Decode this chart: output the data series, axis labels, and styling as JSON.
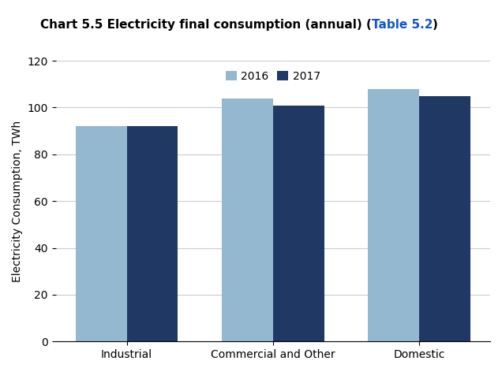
{
  "title_plain": "Chart 5.5 Electricity final consumption (annual) (",
  "title_link": "Table 5.2",
  "title_end": ")",
  "categories": [
    "Industrial",
    "Commercial and Other",
    "Domestic"
  ],
  "values_2016": [
    92,
    104,
    108
  ],
  "values_2017": [
    92,
    101,
    105
  ],
  "color_2016": "#95b8d1",
  "color_2017": "#1f3864",
  "ylabel": "Electricity Consumption, TWh",
  "ylim": [
    0,
    120
  ],
  "yticks": [
    0,
    20,
    40,
    60,
    80,
    100,
    120
  ],
  "legend_labels": [
    "2016",
    "2017"
  ],
  "bar_width": 0.35,
  "background_color": "#ffffff",
  "grid_color": "#cccccc",
  "title_fontsize": 11,
  "axis_fontsize": 10,
  "tick_fontsize": 10,
  "legend_fontsize": 10
}
